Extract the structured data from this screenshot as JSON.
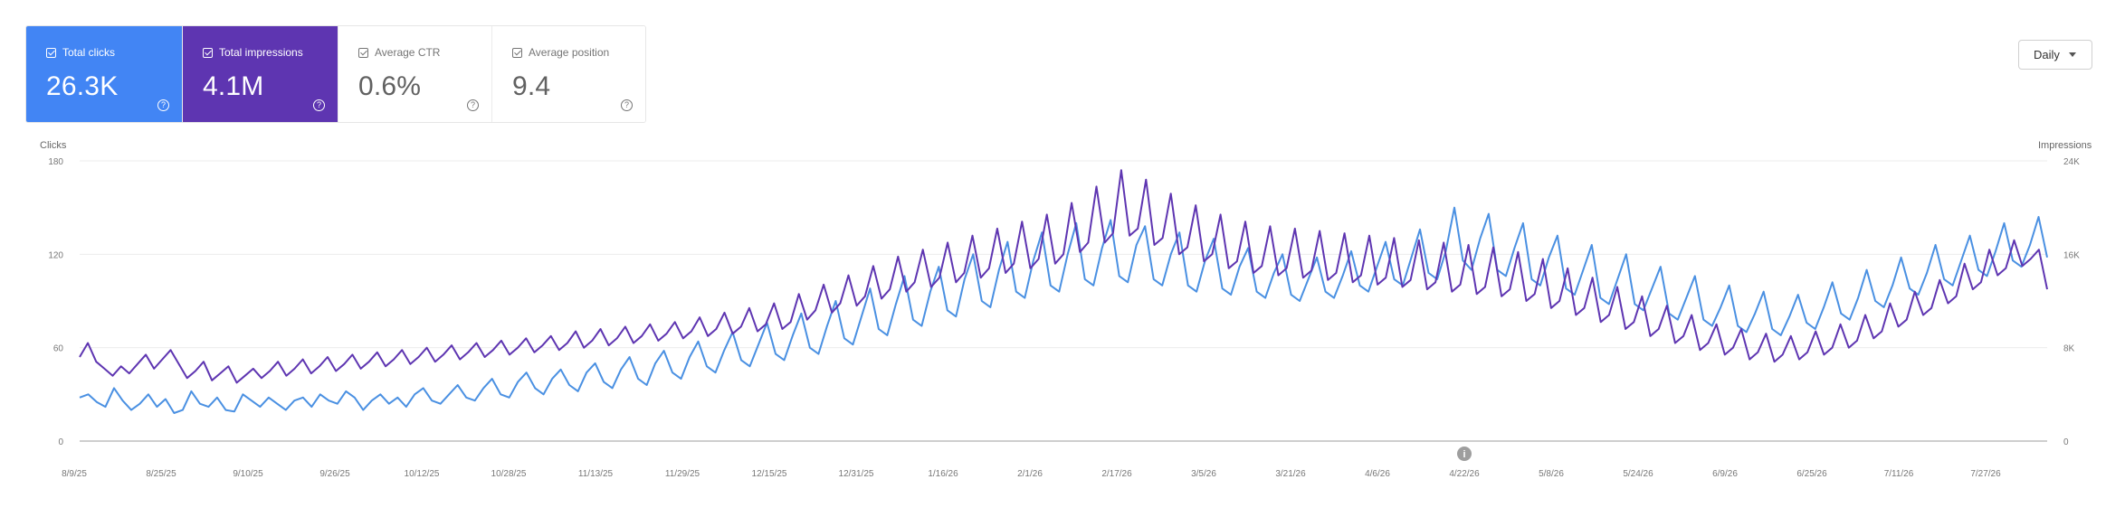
{
  "cards": [
    {
      "label": "Total clicks",
      "value": "26.3K",
      "style": "blue"
    },
    {
      "label": "Total impressions",
      "value": "4.1M",
      "style": "purple"
    },
    {
      "label": "Average CTR",
      "value": "0.6%",
      "style": "plain"
    },
    {
      "label": "Average position",
      "value": "9.4",
      "style": "plain"
    }
  ],
  "granularity": {
    "label": "Daily"
  },
  "chart_data": {
    "type": "line",
    "left_axis": {
      "title": "Clicks",
      "ticks": [
        "180",
        "120",
        "60",
        "0"
      ],
      "range": [
        0,
        180
      ]
    },
    "right_axis": {
      "title": "Impressions",
      "ticks": [
        "24K",
        "16K",
        "8K",
        "0"
      ],
      "range": [
        0,
        24000
      ]
    },
    "x_ticks": [
      "8/9/25",
      "8/25/25",
      "9/10/25",
      "9/26/25",
      "10/12/25",
      "10/28/25",
      "11/13/25",
      "11/29/25",
      "12/15/25",
      "12/31/25",
      "1/16/26",
      "2/1/26",
      "2/17/26",
      "3/5/26",
      "3/21/26",
      "4/6/26",
      "4/22/26",
      "5/8/26",
      "5/24/26",
      "6/9/26",
      "6/25/26",
      "7/11/26",
      "7/27/26"
    ],
    "annotation": {
      "label": "i",
      "at": "4/22/26"
    },
    "grid": "horizontal",
    "series": [
      {
        "name": "Total clicks",
        "axis": "left",
        "color": "#4a90e2",
        "values": [
          28,
          30,
          25,
          22,
          34,
          26,
          20,
          24,
          30,
          22,
          27,
          18,
          20,
          32,
          24,
          22,
          28,
          20,
          19,
          30,
          26,
          22,
          28,
          24,
          20,
          26,
          28,
          22,
          30,
          26,
          24,
          32,
          28,
          20,
          26,
          30,
          24,
          28,
          22,
          30,
          34,
          26,
          24,
          30,
          36,
          28,
          26,
          34,
          40,
          30,
          28,
          38,
          44,
          34,
          30,
          40,
          46,
          36,
          32,
          44,
          50,
          38,
          34,
          46,
          54,
          40,
          36,
          50,
          58,
          44,
          40,
          54,
          64,
          48,
          44,
          58,
          70,
          52,
          48,
          62,
          76,
          56,
          52,
          68,
          82,
          60,
          56,
          74,
          90,
          66,
          62,
          80,
          98,
          72,
          68,
          88,
          106,
          78,
          74,
          96,
          112,
          84,
          80,
          104,
          120,
          90,
          86,
          110,
          128,
          96,
          92,
          116,
          134,
          100,
          96,
          120,
          140,
          104,
          100,
          124,
          142,
          106,
          102,
          126,
          138,
          104,
          100,
          120,
          134,
          100,
          96,
          116,
          130,
          98,
          94,
          112,
          124,
          96,
          92,
          108,
          120,
          94,
          90,
          104,
          118,
          96,
          92,
          106,
          122,
          100,
          96,
          112,
          128,
          104,
          100,
          118,
          136,
          108,
          104,
          122,
          150,
          116,
          110,
          130,
          146,
          110,
          106,
          124,
          140,
          104,
          100,
          118,
          132,
          98,
          94,
          110,
          126,
          92,
          88,
          104,
          120,
          88,
          84,
          98,
          112,
          82,
          78,
          92,
          106,
          78,
          74,
          86,
          100,
          74,
          70,
          82,
          96,
          72,
          68,
          80,
          94,
          76,
          72,
          86,
          102,
          82,
          78,
          92,
          110,
          90,
          86,
          100,
          118,
          98,
          94,
          108,
          126,
          104,
          100,
          116,
          132,
          110,
          106,
          122,
          140,
          116,
          112,
          126,
          144,
          118
        ]
      },
      {
        "name": "Total impressions",
        "axis": "right",
        "color": "#5e35b1",
        "values": [
          7200,
          8400,
          6800,
          6200,
          5600,
          6400,
          5800,
          6600,
          7400,
          6200,
          7000,
          7800,
          6600,
          5400,
          6000,
          6800,
          5200,
          5800,
          6400,
          5000,
          5600,
          6200,
          5400,
          6000,
          6800,
          5600,
          6200,
          7000,
          5800,
          6400,
          7200,
          6000,
          6600,
          7400,
          6200,
          6800,
          7600,
          6400,
          7000,
          7800,
          6600,
          7200,
          8000,
          6800,
          7400,
          8200,
          7000,
          7600,
          8400,
          7200,
          7800,
          8600,
          7400,
          8000,
          8800,
          7600,
          8200,
          9000,
          7800,
          8400,
          9400,
          8000,
          8600,
          9600,
          8200,
          8800,
          9800,
          8400,
          9000,
          10000,
          8600,
          9200,
          10200,
          8800,
          9400,
          10600,
          9000,
          9600,
          11000,
          9200,
          9800,
          11400,
          9400,
          10000,
          11800,
          9600,
          10200,
          12600,
          10400,
          11200,
          13400,
          11000,
          11800,
          14200,
          11600,
          12400,
          15000,
          12200,
          13000,
          15800,
          12800,
          13600,
          16400,
          13200,
          14000,
          17000,
          13600,
          14400,
          17600,
          14000,
          14800,
          18200,
          14400,
          15200,
          18800,
          14800,
          15600,
          19400,
          15200,
          16000,
          20400,
          16200,
          17000,
          21800,
          17000,
          17800,
          23200,
          17600,
          18200,
          22400,
          16800,
          17400,
          21200,
          16000,
          16600,
          20200,
          15400,
          16000,
          19400,
          14800,
          15400,
          18800,
          14400,
          15000,
          18400,
          14200,
          14800,
          18200,
          14000,
          14600,
          18000,
          13800,
          14400,
          17800,
          13600,
          14200,
          17600,
          13400,
          14000,
          17400,
          13200,
          13800,
          17200,
          13000,
          13600,
          17000,
          12800,
          13400,
          16800,
          12600,
          13200,
          16600,
          12400,
          13000,
          16200,
          12000,
          12600,
          15600,
          11400,
          12000,
          14800,
          10800,
          11400,
          14000,
          10200,
          10800,
          13200,
          9600,
          10200,
          12400,
          9000,
          9600,
          11600,
          8400,
          9000,
          10800,
          7800,
          8400,
          10000,
          7400,
          8000,
          9600,
          7000,
          7600,
          9200,
          6800,
          7400,
          9000,
          7000,
          7600,
          9400,
          7400,
          8000,
          10000,
          8000,
          8600,
          10800,
          8800,
          9400,
          11800,
          9800,
          10400,
          12800,
          10800,
          11400,
          13800,
          11800,
          12400,
          15200,
          13000,
          13600,
          16400,
          14200,
          14800,
          17200,
          15000,
          15600,
          16400,
          13000
        ]
      }
    ]
  }
}
